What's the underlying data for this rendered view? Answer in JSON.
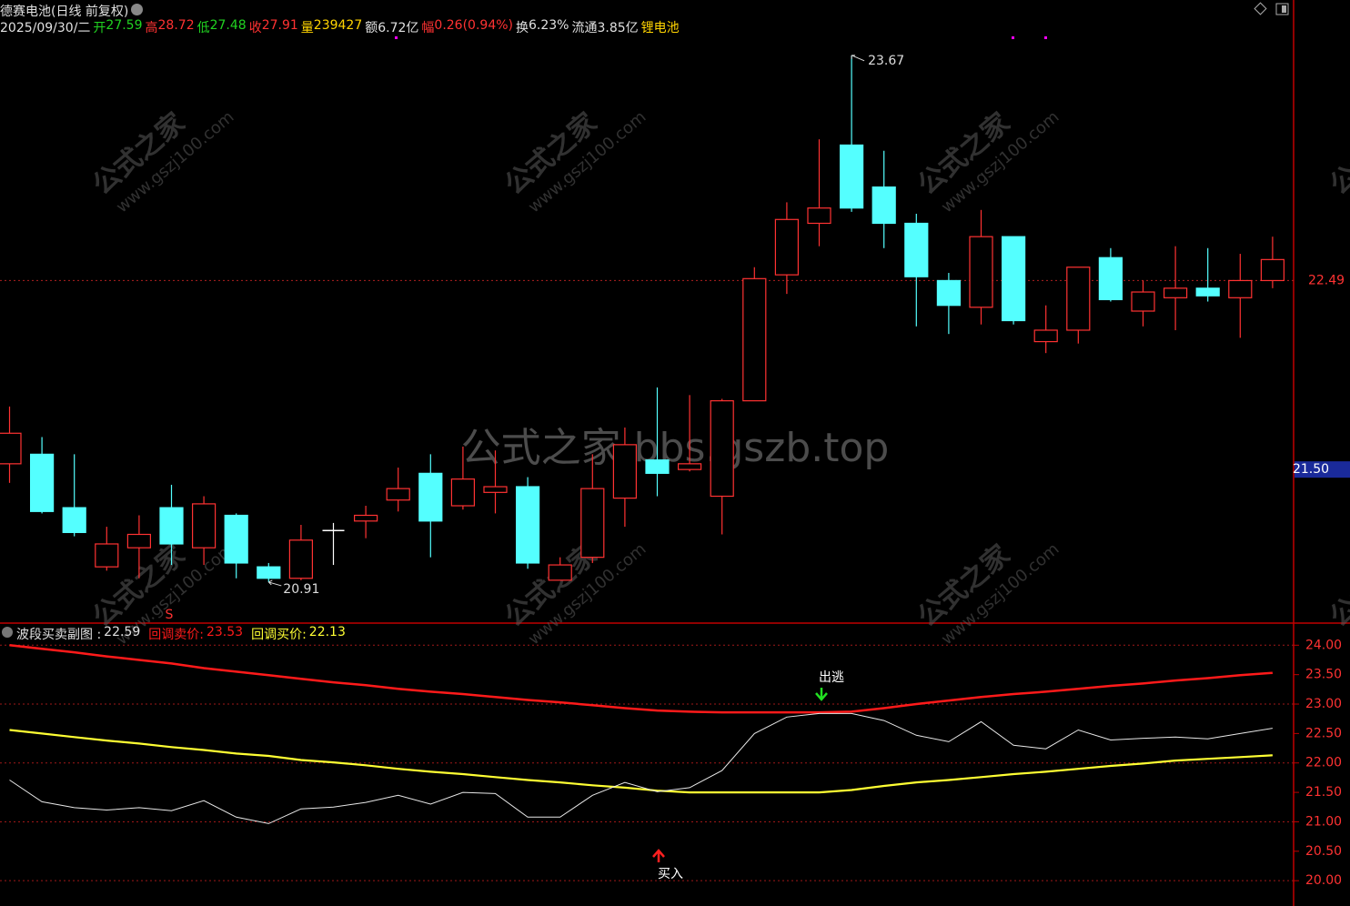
{
  "header": {
    "title": "德赛电池(日线 前复权)",
    "date": "2025/09/30/二",
    "fields": [
      {
        "label": "开",
        "value": 27.59
      },
      {
        "label": "高",
        "value": 28.72
      },
      {
        "label": "低",
        "value": 27.48
      },
      {
        "label": "收",
        "value": 27.91
      },
      {
        "label": "量",
        "value": 239427
      },
      {
        "label": "额",
        "value": "6.72亿"
      },
      {
        "label": "幅",
        "value": "0.26(0.94%)"
      },
      {
        "label": "换",
        "value": "6.23%"
      },
      {
        "label": "流通",
        "value": "3.85亿"
      }
    ],
    "sector": "锂电池"
  },
  "watermark": {
    "center": "公式之家 bbs.gszb.top",
    "name": "公式之家",
    "site": "www.gszj100.com"
  },
  "chart_data": [
    {
      "type": "candlestick",
      "up_color": "#ff3232",
      "down_color": "#54ffff",
      "flat_color": "#ffffff",
      "open": [
        21.53,
        21.58,
        21.3,
        20.99,
        21.09,
        21.3,
        21.09,
        21.26,
        20.99,
        20.93,
        21.18,
        21.23,
        21.34,
        21.48,
        21.31,
        21.38,
        21.41,
        20.92,
        21.04,
        21.35,
        21.55,
        21.5,
        21.36,
        21.86,
        22.52,
        22.79,
        23.2,
        22.98,
        22.79,
        22.49,
        22.35,
        22.72,
        22.17,
        22.23,
        22.61,
        22.33,
        22.4,
        22.45,
        22.4,
        22.49
      ],
      "high": [
        21.83,
        21.67,
        21.58,
        21.2,
        21.26,
        21.42,
        21.36,
        21.27,
        21.01,
        21.21,
        21.22,
        21.31,
        21.51,
        21.58,
        21.62,
        21.6,
        21.46,
        21.04,
        21.58,
        21.72,
        21.93,
        21.89,
        21.87,
        22.56,
        22.9,
        23.23,
        23.67,
        23.17,
        22.84,
        22.53,
        22.86,
        22.72,
        22.36,
        22.56,
        22.66,
        22.49,
        22.67,
        22.66,
        22.63,
        22.72
      ],
      "low": [
        21.43,
        21.27,
        21.15,
        20.97,
        20.93,
        21.0,
        21.0,
        20.93,
        20.91,
        20.92,
        21.0,
        21.14,
        21.28,
        21.04,
        21.29,
        21.27,
        20.98,
        20.92,
        21.01,
        21.2,
        21.36,
        21.49,
        21.16,
        21.86,
        22.42,
        22.67,
        22.85,
        22.66,
        22.25,
        22.21,
        22.26,
        22.26,
        22.11,
        22.16,
        22.38,
        22.25,
        22.23,
        22.38,
        22.19,
        22.45
      ],
      "close": [
        21.69,
        21.28,
        21.17,
        21.11,
        21.16,
        21.11,
        21.32,
        21.01,
        20.93,
        21.13,
        21.18,
        21.26,
        21.4,
        21.23,
        21.45,
        21.41,
        21.01,
        21.0,
        21.4,
        21.63,
        21.48,
        21.53,
        21.86,
        22.5,
        22.81,
        22.87,
        22.87,
        22.79,
        22.51,
        22.36,
        22.72,
        22.28,
        22.23,
        22.56,
        22.39,
        22.43,
        22.45,
        22.41,
        22.49,
        22.6
      ],
      "ylim": [
        20.7,
        23.96
      ],
      "yticks": [
        22.49
      ],
      "cursor_price": {
        "value": 21.5,
        "label": "21.50"
      },
      "signal": "S"
    },
    {
      "type": "line",
      "title": "波段买卖副图 :",
      "grid": true,
      "series": [
        {
          "name": "回调卖价:",
          "color": "#ff1a1a",
          "values": [
            24.0,
            23.94,
            23.88,
            23.81,
            23.75,
            23.69,
            23.61,
            23.55,
            23.49,
            23.43,
            23.37,
            23.32,
            23.26,
            23.21,
            23.17,
            23.12,
            23.07,
            23.03,
            22.98,
            22.93,
            22.89,
            22.87,
            22.86,
            22.86,
            22.86,
            22.86,
            22.87,
            22.93,
            23.0,
            23.06,
            23.12,
            23.17,
            23.21,
            23.26,
            23.31,
            23.35,
            23.4,
            23.44,
            23.49,
            23.53
          ]
        },
        {
          "name": "回调买价:",
          "color": "#ffff33",
          "values": [
            22.56,
            22.5,
            22.44,
            22.38,
            22.33,
            22.27,
            22.22,
            22.16,
            22.12,
            22.05,
            22.01,
            21.96,
            21.9,
            21.85,
            21.81,
            21.76,
            21.71,
            21.67,
            21.62,
            21.58,
            21.53,
            21.5,
            21.5,
            21.5,
            21.5,
            21.5,
            21.54,
            21.61,
            21.67,
            21.71,
            21.76,
            21.81,
            21.85,
            21.9,
            21.95,
            21.99,
            22.04,
            22.07,
            22.1,
            22.13
          ]
        },
        {
          "color": "#e8e8e8",
          "values": [
            21.71,
            21.34,
            21.24,
            21.2,
            21.24,
            21.19,
            21.36,
            21.08,
            20.97,
            21.22,
            21.25,
            21.33,
            21.45,
            21.3,
            21.5,
            21.48,
            21.08,
            21.08,
            21.45,
            21.67,
            21.51,
            21.58,
            21.87,
            22.5,
            22.78,
            22.84,
            22.84,
            22.72,
            22.47,
            22.36,
            22.7,
            22.3,
            22.24,
            22.56,
            22.39,
            22.42,
            22.44,
            22.41,
            22.5,
            22.59
          ]
        }
      ],
      "ylim": [
        19.57,
        24.36
      ],
      "yticks": [
        {
          "value": 24,
          "label": "24.00"
        },
        {
          "value": 23.5,
          "label": "23.50"
        },
        {
          "value": 23,
          "label": "23.00"
        },
        {
          "value": 22.5,
          "label": "22.50"
        },
        {
          "value": 22,
          "label": "22.00"
        },
        {
          "value": 21.5,
          "label": "21.50"
        },
        {
          "value": 21,
          "label": "21.00"
        },
        {
          "value": 20.5,
          "label": "20.50"
        },
        {
          "value": 20,
          "label": "20.00"
        }
      ],
      "annotations": [
        "出逃",
        "买入"
      ]
    }
  ]
}
